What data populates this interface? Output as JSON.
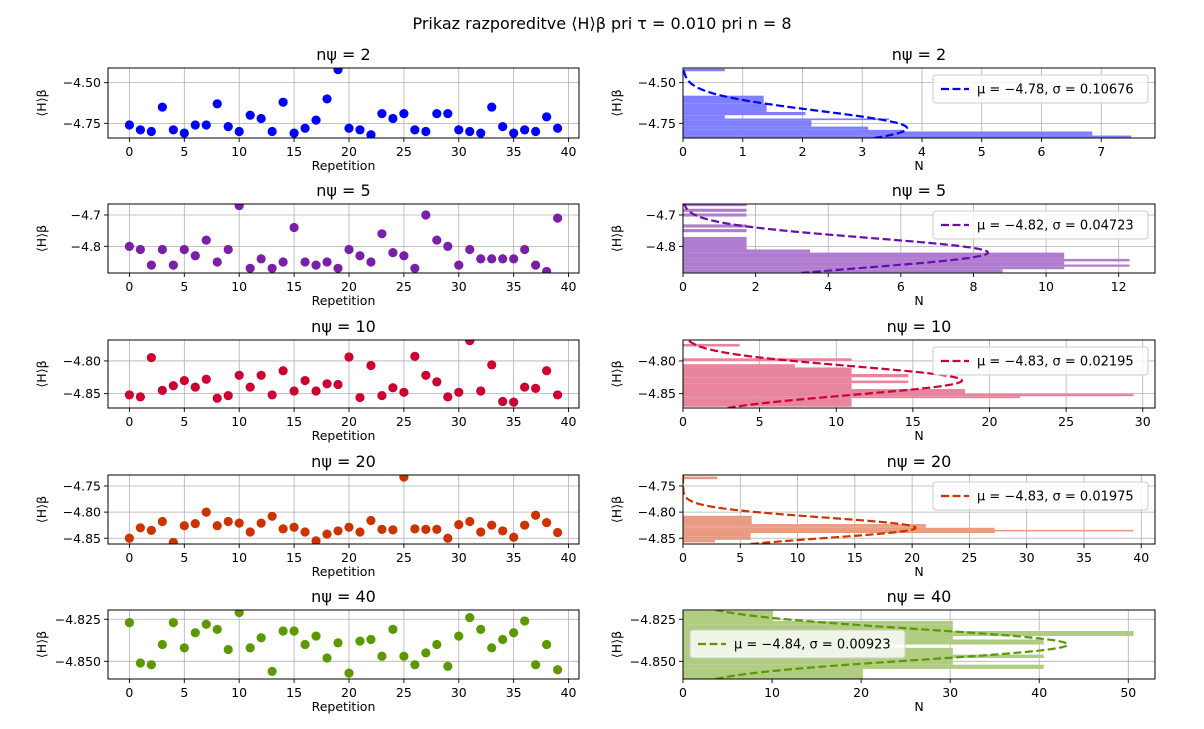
{
  "figure": {
    "suptitle": "Prikaz razporeditve ⟨H⟩β pri τ = 0.010 pri n = 8",
    "y_label": "⟨H⟩β"
  },
  "chart_data": [
    {
      "type": "scatter",
      "title": "nψ = 2",
      "color": "#0000ff",
      "xlabel": "Repetition",
      "ylabel": "⟨H⟩β",
      "xlim": [
        -1.95,
        40.95
      ],
      "ylim": [
        -4.84,
        -4.41
      ],
      "xticks": [
        0,
        5,
        10,
        15,
        20,
        25,
        30,
        35,
        40
      ],
      "yticks": [
        -4.75,
        -4.5
      ],
      "ytick_labels": [
        "−4.75",
        "−4.50"
      ],
      "grid": true,
      "x": [
        0,
        1,
        2,
        3,
        4,
        5,
        6,
        7,
        8,
        9,
        10,
        11,
        12,
        13,
        14,
        15,
        16,
        17,
        18,
        19,
        20,
        21,
        22,
        23,
        24,
        25,
        26,
        27,
        28,
        29,
        30,
        31,
        32,
        33,
        34,
        35,
        36,
        37,
        38,
        39
      ],
      "y": [
        -4.76,
        -4.79,
        -4.8,
        -4.65,
        -4.79,
        -4.81,
        -4.76,
        -4.76,
        -4.63,
        -4.77,
        -4.8,
        -4.7,
        -4.72,
        -4.8,
        -4.62,
        -4.81,
        -4.78,
        -4.73,
        -4.6,
        -4.42,
        -4.78,
        -4.79,
        -4.82,
        -4.69,
        -4.72,
        -4.69,
        -4.79,
        -4.8,
        -4.69,
        -4.69,
        -4.79,
        -4.8,
        -4.81,
        -4.65,
        -4.77,
        -4.81,
        -4.79,
        -4.8,
        -4.71,
        -4.78
      ]
    },
    {
      "type": "bar",
      "orientation": "horizontal",
      "title": "nψ = 2",
      "color": "#8080ff",
      "fit_color": "#0000ff",
      "xlabel": "N",
      "ylabel": "⟨H⟩β",
      "xlim": [
        0,
        7.9
      ],
      "ylim": [
        -4.84,
        -4.41
      ],
      "xticks": [
        0,
        1,
        2,
        3,
        4,
        5,
        6,
        7
      ],
      "yticks": [
        -4.75,
        -4.5
      ],
      "ytick_labels": [
        "−4.75",
        "−4.50"
      ],
      "grid": true,
      "bars": [
        {
          "y0": -4.84,
          "y1": -4.825,
          "n": 7.5
        },
        {
          "y0": -4.825,
          "y1": -4.8,
          "n": 6.85
        },
        {
          "y0": -4.8,
          "y1": -4.79,
          "n": 3.7
        },
        {
          "y0": -4.79,
          "y1": -4.77,
          "n": 3.1
        },
        {
          "y0": -4.77,
          "y1": -4.73,
          "n": 2.15
        },
        {
          "y0": -4.73,
          "y1": -4.72,
          "n": 3.45
        },
        {
          "y0": -4.72,
          "y1": -4.7,
          "n": 0.7
        },
        {
          "y0": -4.7,
          "y1": -4.68,
          "n": 2.05
        },
        {
          "y0": -4.68,
          "y1": -4.63,
          "n": 1.4
        },
        {
          "y0": -4.63,
          "y1": -4.58,
          "n": 1.35
        },
        {
          "y0": -4.43,
          "y1": -4.415,
          "n": 0.7
        }
      ],
      "fit": {
        "mu": -4.78,
        "sigma": 0.10676,
        "peak": 3.75
      },
      "legend_label": "μ = −4.78, σ = 0.10676",
      "legend_position": "upper right"
    },
    {
      "type": "scatter",
      "title": "nψ = 5",
      "color": "#7a1fa8",
      "xlabel": "Repetition",
      "ylabel": "⟨H⟩β",
      "xlim": [
        -1.95,
        40.95
      ],
      "ylim": [
        -4.885,
        -4.665
      ],
      "xticks": [
        0,
        5,
        10,
        15,
        20,
        25,
        30,
        35,
        40
      ],
      "yticks": [
        -4.8,
        -4.7
      ],
      "ytick_labels": [
        "−4.8",
        "−4.7"
      ],
      "grid": true,
      "x": [
        0,
        1,
        2,
        3,
        4,
        5,
        6,
        7,
        8,
        9,
        10,
        11,
        12,
        13,
        14,
        15,
        16,
        17,
        18,
        19,
        20,
        21,
        22,
        23,
        24,
        25,
        26,
        27,
        28,
        29,
        30,
        31,
        32,
        33,
        34,
        35,
        36,
        37,
        38,
        39
      ],
      "y": [
        -4.8,
        -4.81,
        -4.86,
        -4.81,
        -4.86,
        -4.81,
        -4.83,
        -4.78,
        -4.85,
        -4.81,
        -4.67,
        -4.87,
        -4.84,
        -4.87,
        -4.85,
        -4.74,
        -4.85,
        -4.86,
        -4.85,
        -4.87,
        -4.81,
        -4.83,
        -4.85,
        -4.76,
        -4.82,
        -4.83,
        -4.87,
        -4.7,
        -4.78,
        -4.8,
        -4.86,
        -4.81,
        -4.84,
        -4.84,
        -4.84,
        -4.84,
        -4.81,
        -4.86,
        -4.88,
        -4.71
      ]
    },
    {
      "type": "bar",
      "orientation": "horizontal",
      "title": "nψ = 5",
      "color": "#b07cd0",
      "fit_color": "#6a0dad",
      "xlabel": "N",
      "ylabel": "⟨H⟩β",
      "xlim": [
        0,
        13.0
      ],
      "ylim": [
        -4.885,
        -4.665
      ],
      "xticks": [
        0,
        2,
        4,
        6,
        8,
        10,
        12
      ],
      "yticks": [
        -4.8,
        -4.7
      ],
      "ytick_labels": [
        "−4.8",
        "−4.7"
      ],
      "grid": true,
      "bars": [
        {
          "y0": -4.883,
          "y1": -4.873,
          "n": 8.8
        },
        {
          "y0": -4.873,
          "y1": -4.865,
          "n": 10.5
        },
        {
          "y0": -4.865,
          "y1": -4.858,
          "n": 12.3
        },
        {
          "y0": -4.858,
          "y1": -4.848,
          "n": 10.5
        },
        {
          "y0": -4.848,
          "y1": -4.84,
          "n": 12.3
        },
        {
          "y0": -4.84,
          "y1": -4.82,
          "n": 10.5
        },
        {
          "y0": -4.82,
          "y1": -4.81,
          "n": 3.5
        },
        {
          "y0": -4.81,
          "y1": -4.77,
          "n": 1.75
        },
        {
          "y0": -4.755,
          "y1": -4.745,
          "n": 1.75
        },
        {
          "y0": -4.74,
          "y1": -4.73,
          "n": 1.75
        },
        {
          "y0": -4.705,
          "y1": -4.695,
          "n": 1.75
        },
        {
          "y0": -4.69,
          "y1": -4.68,
          "n": 1.75
        },
        {
          "y0": -4.672,
          "y1": -4.665,
          "n": 1.75
        }
      ],
      "fit": {
        "mu": -4.82,
        "sigma": 0.04723,
        "peak": 8.4
      },
      "legend_label": "μ = −4.82, σ = 0.04723",
      "legend_position": "upper right"
    },
    {
      "type": "scatter",
      "title": "nψ = 10",
      "color": "#cc0033",
      "xlabel": "Repetition",
      "ylabel": "⟨H⟩β",
      "xlim": [
        -1.95,
        40.95
      ],
      "ylim": [
        -4.872,
        -4.768
      ],
      "xticks": [
        0,
        5,
        10,
        15,
        20,
        25,
        30,
        35,
        40
      ],
      "yticks": [
        -4.85,
        -4.8
      ],
      "ytick_labels": [
        "−4.85",
        "−4.80"
      ],
      "grid": true,
      "x": [
        0,
        1,
        2,
        3,
        4,
        5,
        6,
        7,
        8,
        9,
        10,
        11,
        12,
        13,
        14,
        15,
        16,
        17,
        18,
        19,
        20,
        21,
        22,
        23,
        24,
        25,
        26,
        27,
        28,
        29,
        30,
        31,
        32,
        33,
        34,
        35,
        36,
        37,
        38,
        39
      ],
      "y": [
        -4.852,
        -4.855,
        -4.795,
        -4.845,
        -4.838,
        -4.83,
        -4.84,
        -4.828,
        -4.857,
        -4.853,
        -4.822,
        -4.84,
        -4.822,
        -4.852,
        -4.815,
        -4.846,
        -4.83,
        -4.846,
        -4.835,
        -4.836,
        -4.794,
        -4.856,
        -4.807,
        -4.853,
        -4.841,
        -4.848,
        -4.793,
        -4.822,
        -4.832,
        -4.855,
        -4.848,
        -4.769,
        -4.846,
        -4.806,
        -4.862,
        -4.863,
        -4.84,
        -4.842,
        -4.815,
        -4.852
      ]
    },
    {
      "type": "bar",
      "orientation": "horizontal",
      "title": "nψ = 10",
      "color": "#e8849e",
      "fit_color": "#cc0033",
      "xlabel": "N",
      "ylabel": "⟨H⟩β",
      "xlim": [
        0,
        30.8
      ],
      "ylim": [
        -4.872,
        -4.768
      ],
      "xticks": [
        0,
        5,
        10,
        15,
        20,
        25,
        30
      ],
      "yticks": [
        -4.85,
        -4.8
      ],
      "ytick_labels": [
        "−4.85",
        "−4.80"
      ],
      "grid": true,
      "bars": [
        {
          "y0": -4.87,
          "y1": -4.857,
          "n": 11.0
        },
        {
          "y0": -4.857,
          "y1": -4.854,
          "n": 22.0
        },
        {
          "y0": -4.854,
          "y1": -4.85,
          "n": 29.4
        },
        {
          "y0": -4.85,
          "y1": -4.843,
          "n": 18.4
        },
        {
          "y0": -4.843,
          "y1": -4.834,
          "n": 11.0
        },
        {
          "y0": -4.834,
          "y1": -4.83,
          "n": 14.7
        },
        {
          "y0": -4.83,
          "y1": -4.825,
          "n": 11.0
        },
        {
          "y0": -4.825,
          "y1": -4.82,
          "n": 14.7
        },
        {
          "y0": -4.82,
          "y1": -4.81,
          "n": 11.0
        },
        {
          "y0": -4.81,
          "y1": -4.805,
          "n": 7.3
        },
        {
          "y0": -4.8,
          "y1": -4.796,
          "n": 11.0
        },
        {
          "y0": -4.778,
          "y1": -4.774,
          "n": 3.7
        }
      ],
      "fit": {
        "mu": -4.83,
        "sigma": 0.02195,
        "peak": 18.2
      },
      "legend_label": "μ = −4.83, σ = 0.02195",
      "legend_position": "upper right"
    },
    {
      "type": "scatter",
      "title": "nψ = 20",
      "color": "#cc3300",
      "xlabel": "Repetition",
      "ylabel": "⟨H⟩β",
      "xlim": [
        -1.95,
        40.95
      ],
      "ylim": [
        -4.861,
        -4.729
      ],
      "xticks": [
        0,
        5,
        10,
        15,
        20,
        25,
        30,
        35,
        40
      ],
      "yticks": [
        -4.85,
        -4.8,
        -4.75
      ],
      "ytick_labels": [
        "−4.85",
        "−4.80",
        "−4.75"
      ],
      "grid": true,
      "x": [
        0,
        1,
        2,
        3,
        4,
        5,
        6,
        7,
        8,
        9,
        10,
        11,
        12,
        13,
        14,
        15,
        16,
        17,
        18,
        19,
        20,
        21,
        22,
        23,
        24,
        25,
        26,
        27,
        28,
        29,
        30,
        31,
        32,
        33,
        34,
        35,
        36,
        37,
        38,
        39
      ],
      "y": [
        -4.85,
        -4.83,
        -4.835,
        -4.818,
        -4.858,
        -4.826,
        -4.822,
        -4.8,
        -4.826,
        -4.818,
        -4.821,
        -4.838,
        -4.821,
        -4.808,
        -4.832,
        -4.829,
        -4.838,
        -4.855,
        -4.842,
        -4.836,
        -4.829,
        -4.838,
        -4.816,
        -4.833,
        -4.834,
        -4.733,
        -4.832,
        -4.833,
        -4.833,
        -4.85,
        -4.824,
        -4.818,
        -4.838,
        -4.825,
        -4.836,
        -4.848,
        -4.825,
        -4.806,
        -4.82,
        -4.839
      ]
    },
    {
      "type": "bar",
      "orientation": "horizontal",
      "title": "nψ = 20",
      "color": "#e89a80",
      "fit_color": "#cc3300",
      "xlabel": "N",
      "ylabel": "⟨H⟩β",
      "xlim": [
        0,
        41.2
      ],
      "ylim": [
        -4.861,
        -4.729
      ],
      "xticks": [
        0,
        5,
        10,
        15,
        20,
        25,
        30,
        35,
        40
      ],
      "yticks": [
        -4.85,
        -4.8,
        -4.75
      ],
      "ytick_labels": [
        "−4.85",
        "−4.80",
        "−4.75"
      ],
      "grid": true,
      "bars": [
        {
          "y0": -4.858,
          "y1": -4.853,
          "n": 2.8
        },
        {
          "y0": -4.853,
          "y1": -4.847,
          "n": 5.9
        },
        {
          "y0": -4.847,
          "y1": -4.84,
          "n": 5.9
        },
        {
          "y0": -4.84,
          "y1": -4.837,
          "n": 27.2
        },
        {
          "y0": -4.837,
          "y1": -4.834,
          "n": 39.3
        },
        {
          "y0": -4.834,
          "y1": -4.83,
          "n": 27.2
        },
        {
          "y0": -4.83,
          "y1": -4.827,
          "n": 21.2
        },
        {
          "y0": -4.827,
          "y1": -4.823,
          "n": 21.2
        },
        {
          "y0": -4.823,
          "y1": -4.818,
          "n": 6.0
        },
        {
          "y0": -4.818,
          "y1": -4.813,
          "n": 6.0
        },
        {
          "y0": -4.813,
          "y1": -4.807,
          "n": 6.0
        },
        {
          "y0": -4.737,
          "y1": -4.732,
          "n": 3.0
        }
      ],
      "fit": {
        "mu": -4.83,
        "sigma": 0.01975,
        "peak": 20.3
      },
      "legend_label": "μ = −4.83, σ = 0.01975",
      "legend_position": "upper right"
    },
    {
      "type": "scatter",
      "title": "nψ = 40",
      "color": "#5c9900",
      "xlabel": "Repetition",
      "ylabel": "⟨H⟩β",
      "xlim": [
        -1.95,
        40.95
      ],
      "ylim": [
        -4.8605,
        -4.8195
      ],
      "xticks": [
        0,
        5,
        10,
        15,
        20,
        25,
        30,
        35,
        40
      ],
      "yticks": [
        -4.85,
        -4.825
      ],
      "ytick_labels": [
        "−4.850",
        "−4.825"
      ],
      "grid": true,
      "x": [
        0,
        1,
        2,
        3,
        4,
        5,
        6,
        7,
        8,
        9,
        10,
        11,
        12,
        13,
        14,
        15,
        16,
        17,
        18,
        19,
        20,
        21,
        22,
        23,
        24,
        25,
        26,
        27,
        28,
        29,
        30,
        31,
        32,
        33,
        34,
        35,
        36,
        37,
        38,
        39
      ],
      "y": [
        -4.827,
        -4.851,
        -4.852,
        -4.84,
        -4.827,
        -4.842,
        -4.833,
        -4.828,
        -4.831,
        -4.843,
        -4.821,
        -4.842,
        -4.836,
        -4.856,
        -4.832,
        -4.832,
        -4.84,
        -4.835,
        -4.848,
        -4.839,
        -4.857,
        -4.838,
        -4.837,
        -4.847,
        -4.831,
        -4.847,
        -4.852,
        -4.845,
        -4.84,
        -4.853,
        -4.835,
        -4.824,
        -4.831,
        -4.842,
        -4.837,
        -4.833,
        -4.826,
        -4.852,
        -4.84,
        -4.855
      ]
    },
    {
      "type": "bar",
      "orientation": "horizontal",
      "title": "nψ = 40",
      "color": "#b0cc80",
      "fit_color": "#5c9900",
      "xlabel": "N",
      "ylabel": "⟨H⟩β",
      "xlim": [
        0,
        53.0
      ],
      "ylim": [
        -4.8605,
        -4.8195
      ],
      "xticks": [
        0,
        10,
        20,
        30,
        40,
        50
      ],
      "yticks": [
        -4.85,
        -4.825
      ],
      "ytick_labels": [
        "−4.850",
        "−4.825"
      ],
      "grid": true,
      "bars": [
        {
          "y0": -4.8605,
          "y1": -4.8545,
          "n": 20.2
        },
        {
          "y0": -4.8545,
          "y1": -4.852,
          "n": 40.5
        },
        {
          "y0": -4.852,
          "y1": -4.848,
          "n": 30.3
        },
        {
          "y0": -4.848,
          "y1": -4.846,
          "n": 40.5
        },
        {
          "y0": -4.846,
          "y1": -4.842,
          "n": 30.3
        },
        {
          "y0": -4.842,
          "y1": -4.84,
          "n": 20.2
        },
        {
          "y0": -4.84,
          "y1": -4.837,
          "n": 40.5
        },
        {
          "y0": -4.837,
          "y1": -4.835,
          "n": 30.3
        },
        {
          "y0": -4.835,
          "y1": -4.832,
          "n": 50.6
        },
        {
          "y0": -4.832,
          "y1": -4.828,
          "n": 30.3
        },
        {
          "y0": -4.828,
          "y1": -4.826,
          "n": 30.3
        },
        {
          "y0": -4.826,
          "y1": -4.82,
          "n": 10.1
        }
      ],
      "fit": {
        "mu": -4.84,
        "sigma": 0.00923,
        "peak": 43.2
      },
      "legend_label": "μ = −4.84, σ = 0.00923",
      "legend_position": "upper left"
    }
  ]
}
